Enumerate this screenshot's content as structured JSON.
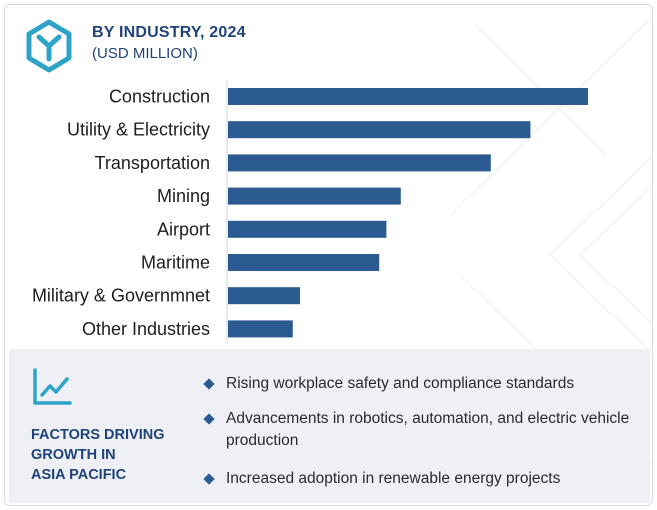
{
  "header": {
    "title": "BY INDUSTRY, 2024",
    "subtitle": "(USD MILLION)",
    "logo_icon": "hexagon-y-logo-icon",
    "brand_color": "#2ea3c8",
    "accent_color": "#20437a"
  },
  "chart_data": {
    "type": "bar",
    "orientation": "horizontal",
    "categories": [
      "Construction",
      "Utility & Electricity",
      "Transportation",
      "Mining",
      "Airport",
      "Maritime",
      "Military & Governmnet",
      "Other Industries"
    ],
    "values": [
      100,
      84,
      73,
      48,
      44,
      42,
      20,
      18
    ],
    "xlim": [
      0,
      100
    ],
    "bar_color": "#2c5b92",
    "grid": false,
    "legend": "none",
    "axis_tick_labels": false
  },
  "factors": {
    "icon": "trend-chart-icon",
    "title_lines": [
      "FACTORS DRIVING",
      "GROWTH IN",
      "ASIA PACIFIC"
    ],
    "items": [
      "Rising workplace safety and compliance standards",
      "Advancements in robotics, automation, and electric vehicle production",
      "Increased adoption in renewable energy projects"
    ]
  }
}
